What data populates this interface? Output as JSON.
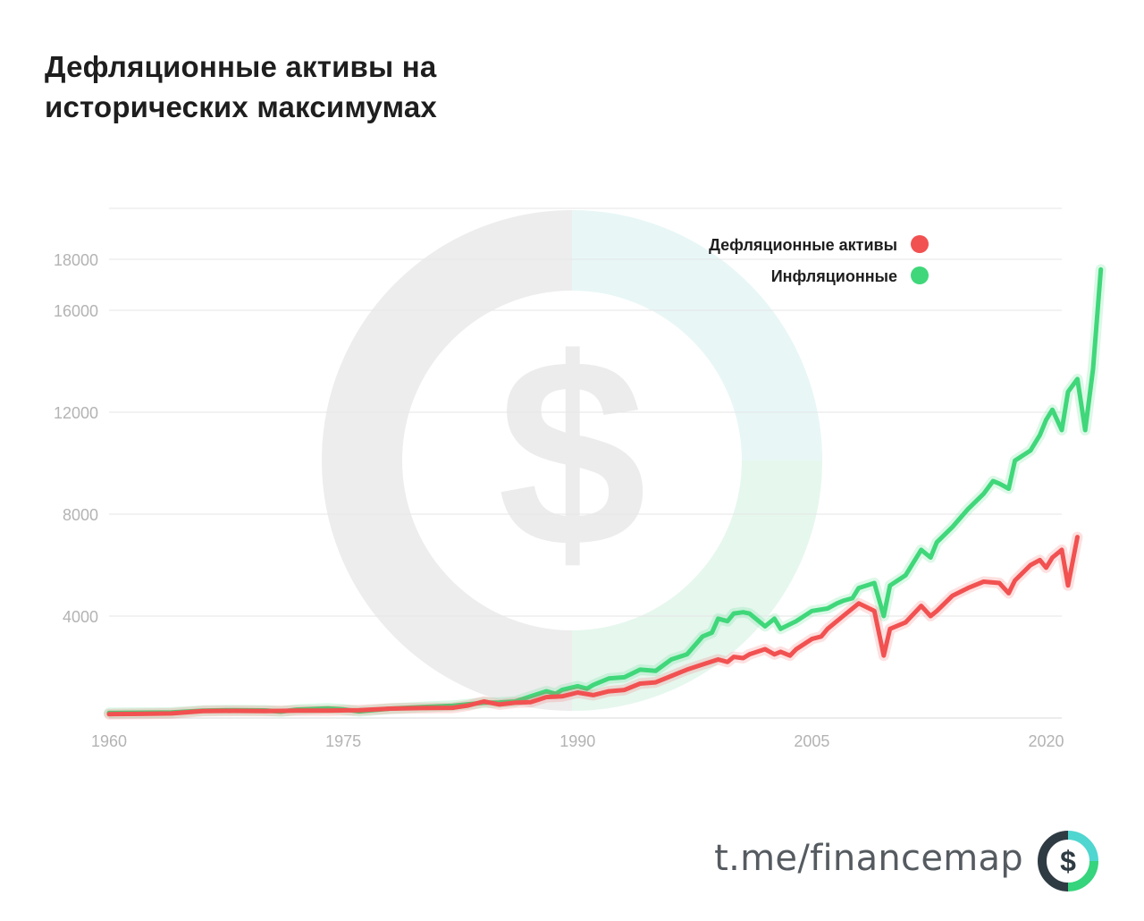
{
  "title": {
    "line1": "Дефляционные активы на",
    "line2": "исторических максимумах"
  },
  "footer": {
    "link": "t.me/financemap",
    "logo_symbol": "$"
  },
  "watermark": {
    "icon": "dollar-ring-icon",
    "symbol": "$"
  },
  "colors": {
    "deflation": "#f25151",
    "inflation": "#3fd77a",
    "grid": "#e6e6e6",
    "tick": "#b3b3b3",
    "title": "#1e1e1e",
    "logo_dark": "#2f3b43",
    "logo_teal": "#4fd6d0",
    "logo_green": "#36d47c"
  },
  "chart_data": {
    "type": "line",
    "title": "Дефляционные активы на исторических максимумах",
    "xlabel": "",
    "ylabel": "",
    "xlim": [
      1960,
      2021
    ],
    "ylim": [
      0,
      20000
    ],
    "grid": true,
    "legend_position": "top-right",
    "x_ticks": [
      "1960",
      "1975",
      "1990",
      "2005",
      "2020"
    ],
    "y_ticks": [
      "4000",
      "8000",
      "12000",
      "16000",
      "18000"
    ],
    "series": [
      {
        "name": "Дефляционные активы",
        "color": "#f25151",
        "points": [
          [
            1960,
            150
          ],
          [
            1962,
            160
          ],
          [
            1964,
            180
          ],
          [
            1966,
            270
          ],
          [
            1968,
            280
          ],
          [
            1970,
            270
          ],
          [
            1972,
            290
          ],
          [
            1974,
            290
          ],
          [
            1976,
            310
          ],
          [
            1978,
            370
          ],
          [
            1980,
            390
          ],
          [
            1982,
            400
          ],
          [
            1983,
            490
          ],
          [
            1984,
            650
          ],
          [
            1985,
            530
          ],
          [
            1986,
            600
          ],
          [
            1987,
            620
          ],
          [
            1988,
            820
          ],
          [
            1989,
            850
          ],
          [
            1990,
            1000
          ],
          [
            1991,
            900
          ],
          [
            1992,
            1050
          ],
          [
            1993,
            1100
          ],
          [
            1994,
            1350
          ],
          [
            1995,
            1400
          ],
          [
            1996,
            1650
          ],
          [
            1997,
            1900
          ],
          [
            1998,
            2100
          ],
          [
            1999,
            2300
          ],
          [
            1999.6,
            2200
          ],
          [
            2000,
            2400
          ],
          [
            2000.6,
            2350
          ],
          [
            2001,
            2500
          ],
          [
            2002,
            2700
          ],
          [
            2002.6,
            2500
          ],
          [
            2003,
            2600
          ],
          [
            2003.6,
            2450
          ],
          [
            2004,
            2700
          ],
          [
            2005,
            3100
          ],
          [
            2005.6,
            3200
          ],
          [
            2006,
            3500
          ],
          [
            2007,
            4000
          ],
          [
            2008,
            4500
          ],
          [
            2009,
            4200
          ],
          [
            2009.6,
            2450
          ],
          [
            2010,
            3500
          ],
          [
            2011,
            3750
          ],
          [
            2012,
            4400
          ],
          [
            2012.6,
            4000
          ],
          [
            2013,
            4200
          ],
          [
            2014,
            4800
          ],
          [
            2015,
            5100
          ],
          [
            2016,
            5350
          ],
          [
            2017,
            5300
          ],
          [
            2017.6,
            4900
          ],
          [
            2018,
            5400
          ],
          [
            2019,
            6000
          ],
          [
            2019.6,
            6200
          ],
          [
            2020,
            5900
          ],
          [
            2020.4,
            6300
          ],
          [
            2021,
            6600
          ],
          [
            2021.4,
            5200
          ],
          [
            2022,
            7100
          ]
        ]
      },
      {
        "name": "Инфляционные",
        "color": "#3fd77a",
        "points": [
          [
            1960,
            200
          ],
          [
            1962,
            210
          ],
          [
            1964,
            220
          ],
          [
            1966,
            290
          ],
          [
            1968,
            310
          ],
          [
            1970,
            300
          ],
          [
            1971,
            250
          ],
          [
            1972,
            330
          ],
          [
            1974,
            380
          ],
          [
            1975,
            340
          ],
          [
            1976,
            260
          ],
          [
            1978,
            370
          ],
          [
            1980,
            430
          ],
          [
            1982,
            480
          ],
          [
            1984,
            600
          ],
          [
            1985,
            610
          ],
          [
            1986,
            650
          ],
          [
            1987,
            850
          ],
          [
            1988,
            1050
          ],
          [
            1988.6,
            950
          ],
          [
            1989,
            1100
          ],
          [
            1990,
            1250
          ],
          [
            1990.6,
            1150
          ],
          [
            1991,
            1300
          ],
          [
            1992,
            1550
          ],
          [
            1993,
            1600
          ],
          [
            1994,
            1900
          ],
          [
            1995,
            1850
          ],
          [
            1996,
            2300
          ],
          [
            1997,
            2500
          ],
          [
            1998,
            3200
          ],
          [
            1998.6,
            3350
          ],
          [
            1999,
            3900
          ],
          [
            1999.6,
            3800
          ],
          [
            2000,
            4100
          ],
          [
            2000.6,
            4150
          ],
          [
            2001,
            4100
          ],
          [
            2002,
            3600
          ],
          [
            2002.6,
            3900
          ],
          [
            2003,
            3500
          ],
          [
            2004,
            3800
          ],
          [
            2005,
            4200
          ],
          [
            2006,
            4300
          ],
          [
            2006.6,
            4500
          ],
          [
            2007,
            4600
          ],
          [
            2007.6,
            4700
          ],
          [
            2008,
            5100
          ],
          [
            2009,
            5300
          ],
          [
            2009.6,
            4000
          ],
          [
            2010,
            5200
          ],
          [
            2011,
            5600
          ],
          [
            2011.6,
            6200
          ],
          [
            2012,
            6600
          ],
          [
            2012.6,
            6300
          ],
          [
            2013,
            6900
          ],
          [
            2014,
            7500
          ],
          [
            2015,
            8200
          ],
          [
            2016,
            8800
          ],
          [
            2016.6,
            9300
          ],
          [
            2017,
            9200
          ],
          [
            2017.6,
            9000
          ],
          [
            2018,
            10100
          ],
          [
            2019,
            10500
          ],
          [
            2019.6,
            11100
          ],
          [
            2020,
            11700
          ],
          [
            2020.4,
            12100
          ],
          [
            2021,
            11300
          ],
          [
            2021.4,
            12800
          ],
          [
            2022,
            13300
          ],
          [
            2022.5,
            11300
          ],
          [
            2023,
            13700
          ],
          [
            2023.5,
            17600
          ]
        ]
      }
    ]
  }
}
